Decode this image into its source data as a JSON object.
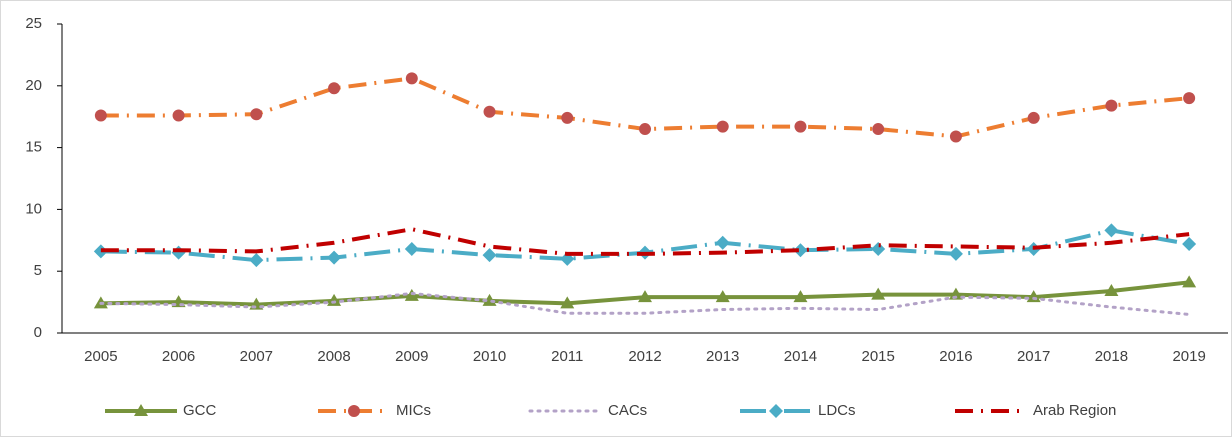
{
  "chart_data": {
    "type": "line",
    "categories": [
      "2005",
      "2006",
      "2007",
      "2008",
      "2009",
      "2010",
      "2011",
      "2012",
      "2013",
      "2014",
      "2015",
      "2016",
      "2017",
      "2018",
      "2019"
    ],
    "series": [
      {
        "name": "GCC",
        "color": "#77933c",
        "marker": "triangle",
        "dash": "solid",
        "values": [
          2.4,
          2.5,
          2.3,
          2.6,
          3.0,
          2.6,
          2.4,
          2.9,
          2.9,
          2.9,
          3.1,
          3.1,
          2.9,
          3.4,
          4.1
        ]
      },
      {
        "name": "MICs",
        "color": "#ed7d31",
        "marker_color": "#c0504d",
        "marker": "circle",
        "dash": "dash-dot",
        "values": [
          17.6,
          17.6,
          17.7,
          19.8,
          20.6,
          17.9,
          17.4,
          16.5,
          16.7,
          16.7,
          16.5,
          15.9,
          17.4,
          18.4,
          19.0
        ]
      },
      {
        "name": "CACs",
        "color": "#b3a2c7",
        "marker": "none",
        "dash": "dot",
        "values": [
          2.4,
          2.3,
          2.1,
          2.5,
          3.2,
          2.6,
          1.6,
          1.6,
          1.9,
          2.0,
          1.9,
          2.9,
          2.8,
          2.1,
          1.5
        ]
      },
      {
        "name": "LDCs",
        "color": "#4bacc6",
        "marker": "diamond",
        "dash": "long-dash-dot",
        "values": [
          6.6,
          6.5,
          5.9,
          6.1,
          6.8,
          6.3,
          6.0,
          6.5,
          7.3,
          6.7,
          6.8,
          6.4,
          6.8,
          8.3,
          7.2
        ]
      },
      {
        "name": "Arab Region",
        "color": "#c00000",
        "marker": "none",
        "dash": "dash-dot",
        "values": [
          6.7,
          6.7,
          6.6,
          7.3,
          8.4,
          7.0,
          6.4,
          6.4,
          6.5,
          6.7,
          7.1,
          7.0,
          6.9,
          7.3,
          8.0
        ]
      }
    ],
    "ylim": [
      0,
      25
    ],
    "yticks": [
      0,
      5,
      10,
      15,
      20,
      25
    ],
    "grid": false,
    "legend": "bottom"
  }
}
